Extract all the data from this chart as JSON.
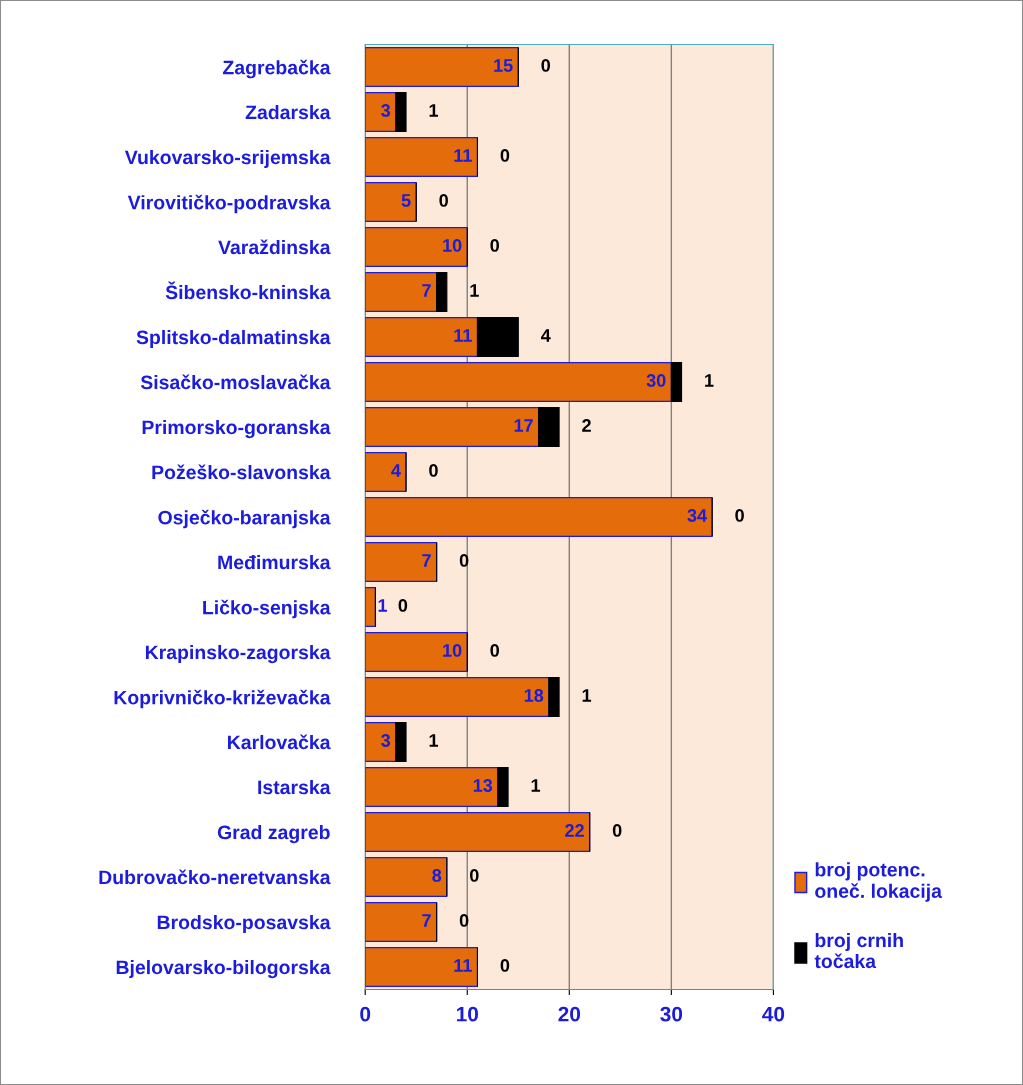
{
  "chart_data": {
    "type": "bar",
    "orientation": "horizontal",
    "stacked": true,
    "categories": [
      "Zagrebačka",
      "Zadarska",
      "Vukovarsko-srijemska",
      "Virovitičko-podravska",
      "Varaždinska",
      "Šibensko-kninska",
      "Splitsko-dalmatinska",
      "Sisačko-moslavačka",
      "Primorsko-goranska",
      "Požeško-slavonska",
      "Osječko-baranjska",
      "Međimurska",
      "Ličko-senjska",
      "Krapinsko-zagorska",
      "Koprivničko-križevačka",
      "Karlovačka",
      "Istarska",
      "Grad zagreb",
      "Dubrovačko-neretvanska",
      "Brodsko-posavska",
      "Bjelovarsko-bilogorska"
    ],
    "series": [
      {
        "name": "broj potenc.\noneč. lokacija",
        "color": "#e46c0a",
        "values": [
          15,
          3,
          11,
          5,
          10,
          7,
          11,
          30,
          17,
          4,
          34,
          7,
          1,
          10,
          18,
          3,
          13,
          22,
          8,
          7,
          11
        ]
      },
      {
        "name": "broj crnih\ntočaka",
        "color": "#000000",
        "values": [
          0,
          1,
          0,
          0,
          0,
          1,
          4,
          1,
          2,
          0,
          0,
          0,
          0,
          0,
          1,
          1,
          1,
          0,
          0,
          0,
          0
        ]
      }
    ],
    "xlim": [
      0,
      40
    ],
    "xticks": [
      0,
      10,
      20,
      30,
      40
    ],
    "grid": "x",
    "legend": "right",
    "data_labels": true
  }
}
